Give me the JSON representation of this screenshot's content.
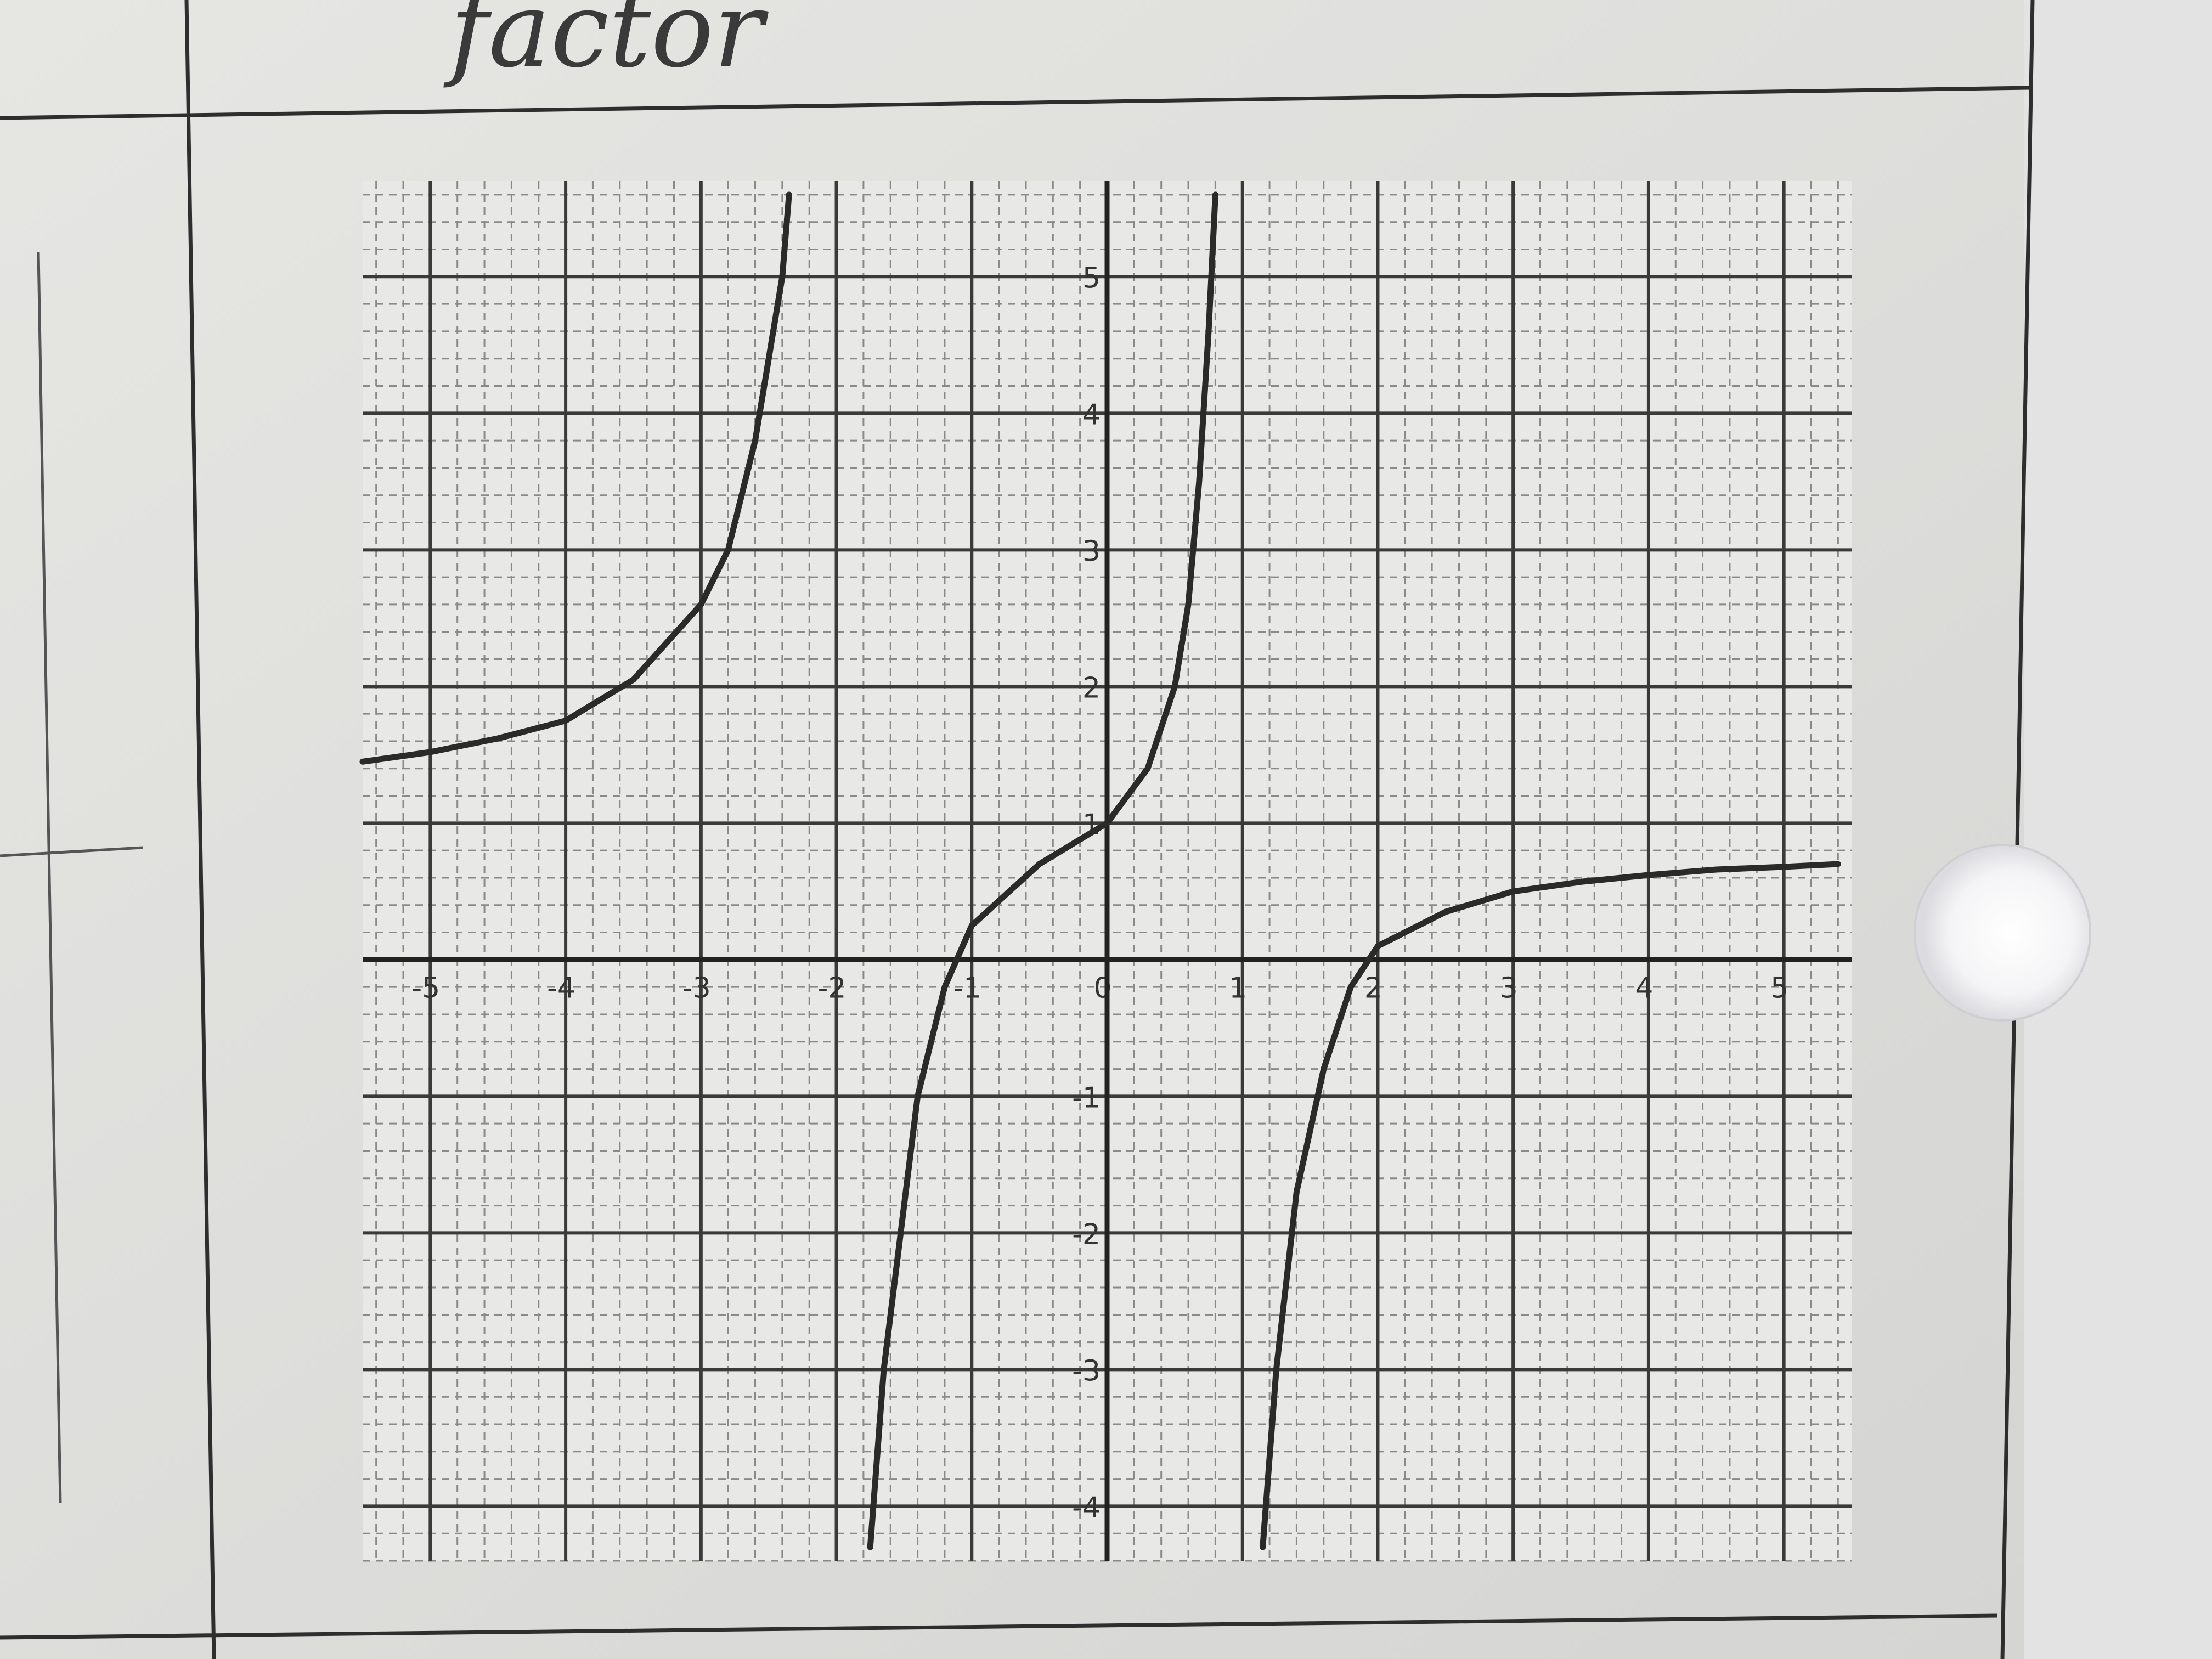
{
  "chart_data": {
    "type": "line",
    "annotations": [
      "factor"
    ],
    "x": [
      -5.5,
      -5,
      -4.5,
      -4,
      -3.5,
      -3,
      -2.8,
      -2.6,
      -2.5,
      -2.4,
      -2.35,
      null,
      -1.75,
      -1.65,
      -1.5,
      -1.4,
      -1.2,
      -1,
      -0.5,
      0,
      0.3,
      0.5,
      0.6,
      0.68,
      0.75,
      0.8,
      null,
      1.15,
      1.25,
      1.4,
      1.6,
      1.8,
      2,
      2.5,
      3,
      3.5,
      4,
      4.5,
      5,
      5.4
    ],
    "values": [
      1.45,
      1.52,
      1.62,
      1.75,
      2.05,
      2.6,
      3.0,
      3.8,
      4.4,
      5.0,
      5.6,
      null,
      -4.3,
      -3.0,
      -1.8,
      -1.0,
      -0.2,
      0.25,
      0.7,
      1.0,
      1.4,
      2.0,
      2.6,
      3.5,
      4.6,
      5.6,
      null,
      -4.3,
      -3.0,
      -1.7,
      -0.8,
      -0.2,
      0.1,
      0.35,
      0.5,
      0.57,
      0.62,
      0.66,
      0.68,
      0.7
    ],
    "color": "#2a2a2a",
    "xlim": [
      -5.5,
      5.5
    ],
    "ylim": [
      -4.4,
      5.7
    ],
    "xticks": [
      -5,
      -4,
      -3,
      -2,
      -1,
      0,
      1,
      2,
      3,
      4,
      5
    ],
    "yticks": [
      -4,
      -3,
      -2,
      -1,
      1,
      2,
      3,
      4,
      5
    ],
    "grid": true
  }
}
